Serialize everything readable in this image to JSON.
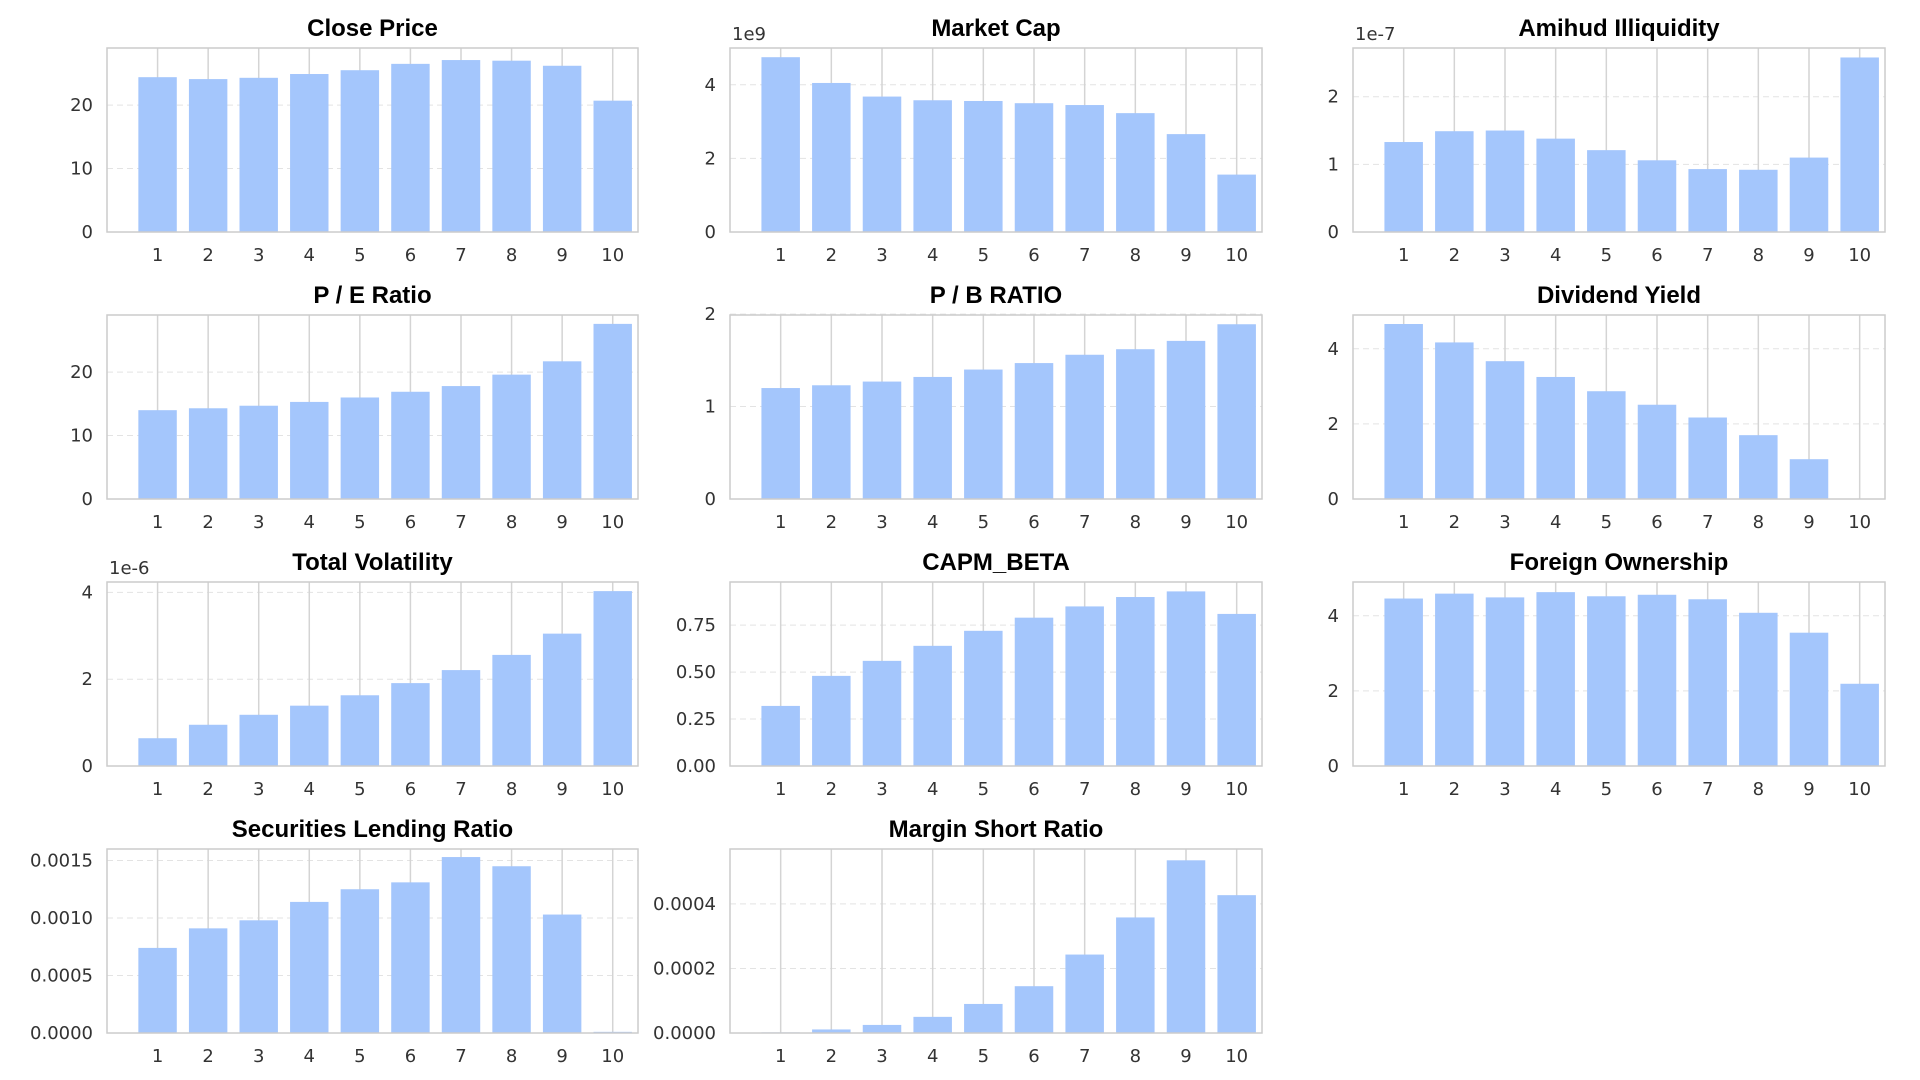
{
  "figure": {
    "bar_color": "#a4c6fc",
    "background": "#ffffff"
  },
  "chart_data": [
    {
      "type": "bar",
      "title": "Close Price",
      "categories": [
        "1",
        "2",
        "3",
        "4",
        "5",
        "6",
        "7",
        "8",
        "9",
        "10"
      ],
      "values": [
        24.4,
        24.1,
        24.3,
        24.9,
        25.5,
        26.5,
        27.1,
        27.0,
        26.2,
        20.7
      ],
      "ylim": [
        0,
        29
      ],
      "yticks": [
        0,
        10,
        20
      ],
      "ytick_labels": [
        "0",
        "10",
        "20"
      ],
      "offset": "",
      "xlabel": "",
      "ylabel": ""
    },
    {
      "type": "bar",
      "title": "Market Cap",
      "categories": [
        "1",
        "2",
        "3",
        "4",
        "5",
        "6",
        "7",
        "8",
        "9",
        "10"
      ],
      "values": [
        4.75,
        4.05,
        3.68,
        3.58,
        3.56,
        3.5,
        3.45,
        3.23,
        2.66,
        1.56
      ],
      "ylim": [
        0,
        5.0
      ],
      "yticks": [
        0,
        2,
        4
      ],
      "ytick_labels": [
        "0",
        "2",
        "4"
      ],
      "offset": "1e9",
      "xlabel": "",
      "ylabel": ""
    },
    {
      "type": "bar",
      "title": "Amihud Illiquidity",
      "categories": [
        "1",
        "2",
        "3",
        "4",
        "5",
        "6",
        "7",
        "8",
        "9",
        "10"
      ],
      "values": [
        1.33,
        1.49,
        1.5,
        1.38,
        1.21,
        1.06,
        0.93,
        0.92,
        1.1,
        2.58
      ],
      "ylim": [
        0,
        2.72
      ],
      "yticks": [
        0,
        1,
        2
      ],
      "ytick_labels": [
        "0",
        "1",
        "2"
      ],
      "offset": "1e-7",
      "xlabel": "",
      "ylabel": ""
    },
    {
      "type": "bar",
      "title": "P / E Ratio",
      "categories": [
        "1",
        "2",
        "3",
        "4",
        "5",
        "6",
        "7",
        "8",
        "9",
        "10"
      ],
      "values": [
        14.0,
        14.3,
        14.7,
        15.3,
        16.0,
        16.9,
        17.8,
        19.6,
        21.7,
        27.6
      ],
      "ylim": [
        0,
        29
      ],
      "yticks": [
        0,
        10,
        20
      ],
      "ytick_labels": [
        "0",
        "10",
        "20"
      ],
      "offset": "",
      "xlabel": "",
      "ylabel": ""
    },
    {
      "type": "bar",
      "title": "P / B RATIO",
      "categories": [
        "1",
        "2",
        "3",
        "4",
        "5",
        "6",
        "7",
        "8",
        "9",
        "10"
      ],
      "values": [
        1.2,
        1.23,
        1.27,
        1.32,
        1.4,
        1.47,
        1.56,
        1.62,
        1.71,
        1.89
      ],
      "ylim": [
        0,
        1.99
      ],
      "yticks": [
        0,
        1,
        2
      ],
      "ytick_labels": [
        "0",
        "1",
        "2"
      ],
      "offset": "",
      "xlabel": "",
      "ylabel": ""
    },
    {
      "type": "bar",
      "title": "Dividend Yield",
      "categories": [
        "1",
        "2",
        "3",
        "4",
        "5",
        "6",
        "7",
        "8",
        "9",
        "10"
      ],
      "values": [
        4.66,
        4.17,
        3.67,
        3.25,
        2.87,
        2.51,
        2.17,
        1.7,
        1.06,
        0
      ],
      "ylim": [
        0,
        4.9
      ],
      "yticks": [
        0,
        2,
        4
      ],
      "ytick_labels": [
        "0",
        "2",
        "4"
      ],
      "offset": "",
      "xlabel": "",
      "ylabel": ""
    },
    {
      "type": "bar",
      "title": "Total Volatility",
      "categories": [
        "1",
        "2",
        "3",
        "4",
        "5",
        "6",
        "7",
        "8",
        "9",
        "10"
      ],
      "values": [
        0.64,
        0.95,
        1.18,
        1.39,
        1.63,
        1.91,
        2.21,
        2.56,
        3.05,
        4.03
      ],
      "ylim": [
        0,
        4.24
      ],
      "yticks": [
        0,
        2,
        4
      ],
      "ytick_labels": [
        "0",
        "2",
        "4"
      ],
      "offset": "1e-6",
      "xlabel": "",
      "ylabel": ""
    },
    {
      "type": "bar",
      "title": "CAPM_BETA",
      "categories": [
        "1",
        "2",
        "3",
        "4",
        "5",
        "6",
        "7",
        "8",
        "9",
        "10"
      ],
      "values": [
        0.32,
        0.48,
        0.56,
        0.64,
        0.72,
        0.79,
        0.85,
        0.9,
        0.93,
        0.81
      ],
      "ylim": [
        0,
        0.98
      ],
      "yticks": [
        0,
        0.25,
        0.5,
        0.75
      ],
      "ytick_labels": [
        "0.00",
        "0.25",
        "0.50",
        "0.75"
      ],
      "offset": "",
      "xlabel": "",
      "ylabel": ""
    },
    {
      "type": "bar",
      "title": "Foreign Ownership",
      "categories": [
        "1",
        "2",
        "3",
        "4",
        "5",
        "6",
        "7",
        "8",
        "9",
        "10"
      ],
      "values": [
        4.46,
        4.59,
        4.49,
        4.63,
        4.52,
        4.56,
        4.44,
        4.08,
        3.55,
        2.19
      ],
      "ylim": [
        0,
        4.9
      ],
      "yticks": [
        0,
        2,
        4
      ],
      "ytick_labels": [
        "0",
        "2",
        "4"
      ],
      "offset": "",
      "xlabel": "",
      "ylabel": ""
    },
    {
      "type": "bar",
      "title": "Securities Lending Ratio",
      "categories": [
        "1",
        "2",
        "3",
        "4",
        "5",
        "6",
        "7",
        "8",
        "9",
        "10"
      ],
      "values": [
        0.00074,
        0.00091,
        0.00098,
        0.00114,
        0.00125,
        0.00131,
        0.00153,
        0.00145,
        0.00103,
        1e-05
      ],
      "ylim": [
        0,
        0.0016
      ],
      "yticks": [
        0,
        0.0005,
        0.001,
        0.0015
      ],
      "ytick_labels": [
        "0.0000",
        "0.0005",
        "0.0010",
        "0.0015"
      ],
      "offset": "",
      "xlabel": "",
      "ylabel": ""
    },
    {
      "type": "bar",
      "title": "Margin Short Ratio",
      "categories": [
        "1",
        "2",
        "3",
        "4",
        "5",
        "6",
        "7",
        "8",
        "9",
        "10"
      ],
      "values": [
        2e-06,
        1.1e-05,
        2.5e-05,
        5e-05,
        9e-05,
        0.000145,
        0.000243,
        0.000358,
        0.000535,
        0.000427
      ],
      "ylim": [
        0,
        0.00057
      ],
      "yticks": [
        0,
        0.0002,
        0.0004
      ],
      "ytick_labels": [
        "0.0000",
        "0.0002",
        "0.0004"
      ],
      "offset": "",
      "xlabel": "",
      "ylabel": ""
    }
  ]
}
